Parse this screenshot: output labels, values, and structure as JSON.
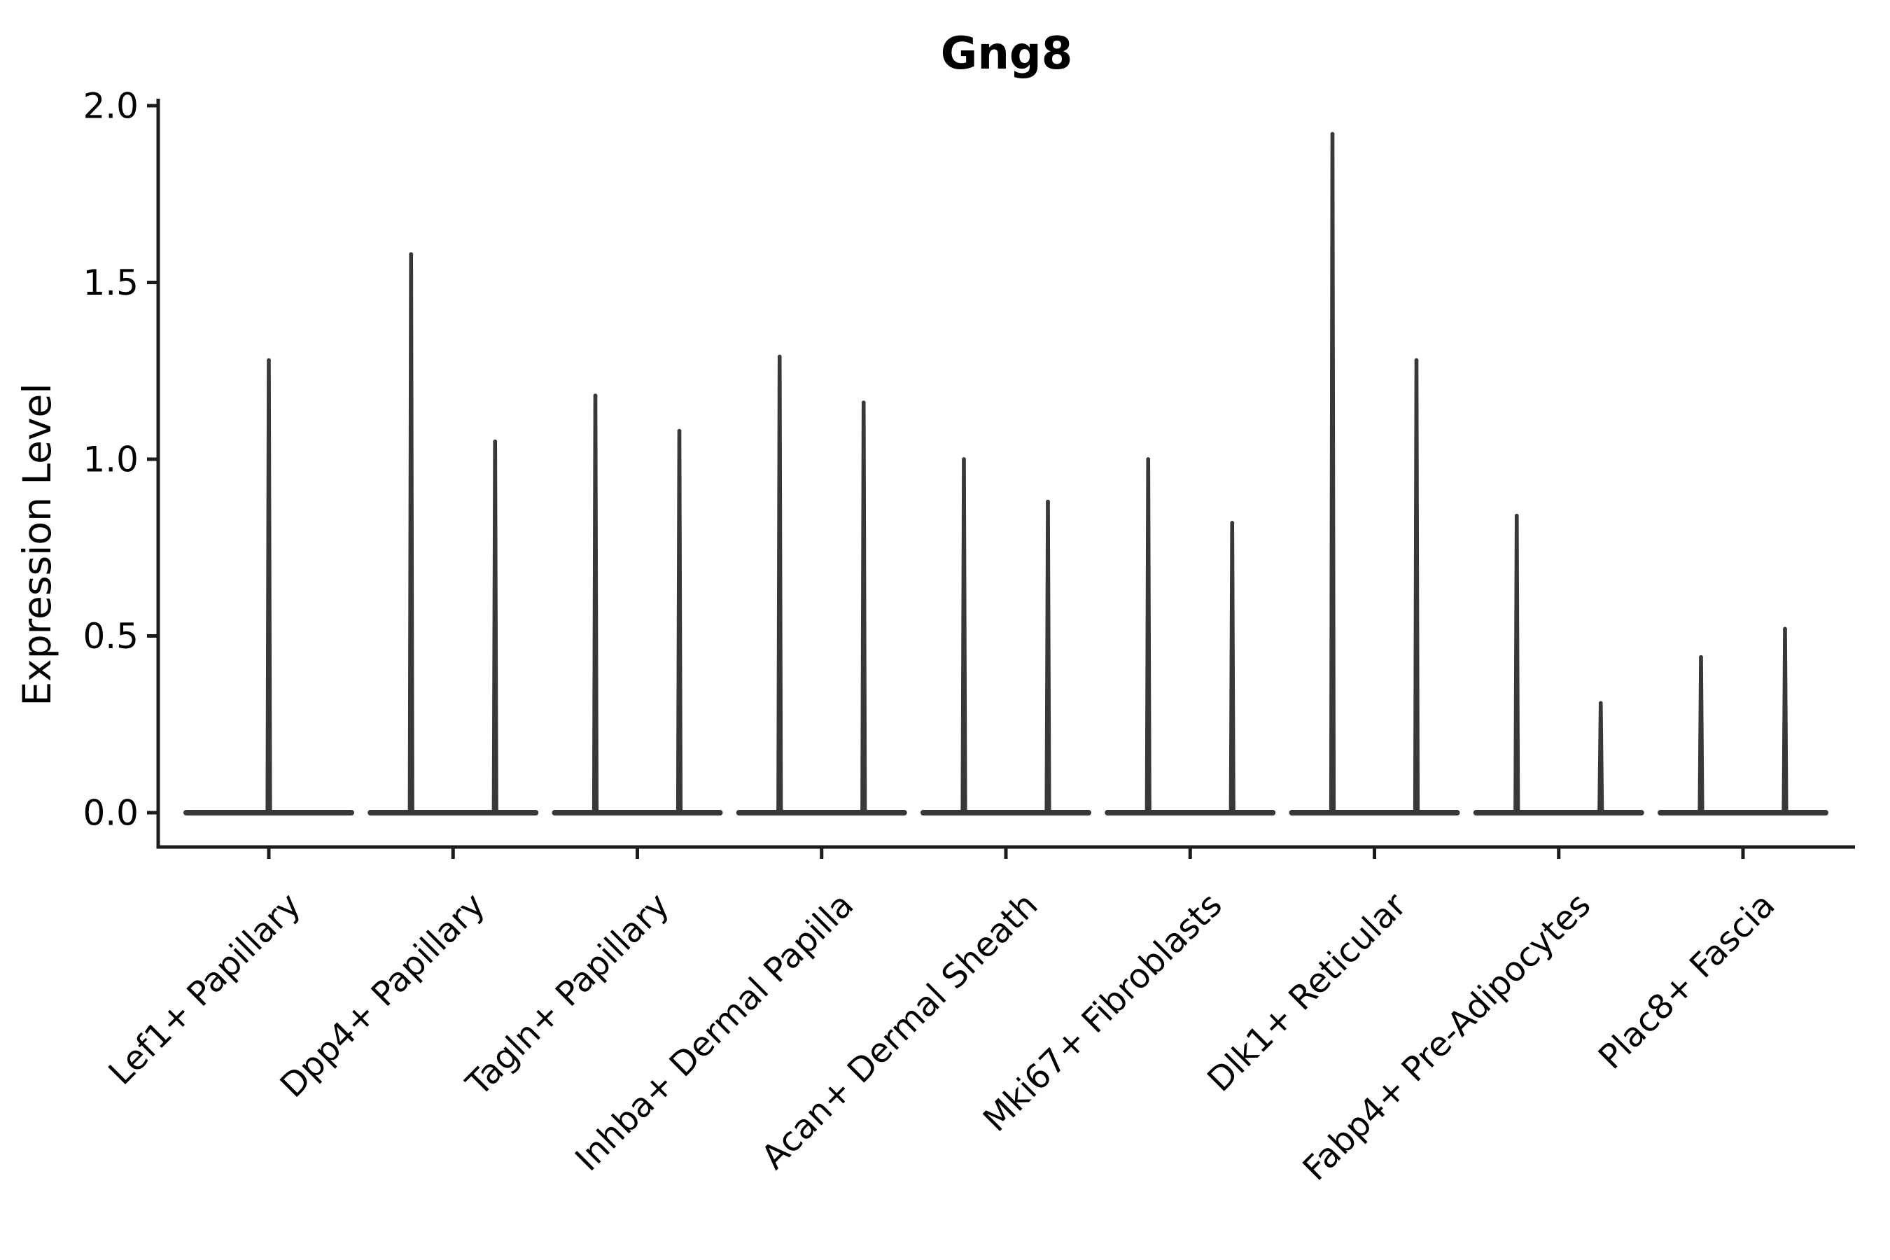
{
  "page": {
    "background": "#ffffff"
  },
  "figure": {
    "title": "Gng8",
    "ylabel": "Expression Level",
    "axis_color": "#1c1c1c",
    "violin_color": "#383838",
    "text_color": "#000000"
  },
  "chart_data": {
    "type": "violin",
    "title": "Gng8",
    "xlabel": "",
    "ylabel": "Expression Level",
    "ylim": [
      -0.1,
      2.05
    ],
    "yticks": [
      0.0,
      0.5,
      1.0,
      1.5,
      2.0
    ],
    "ytick_labels": [
      "0.0",
      "0.5",
      "1.0",
      "1.5",
      "2.0"
    ],
    "grid": false,
    "legend": "none",
    "categories": [
      "Lef1+ Papillary",
      "Dpp4+ Papillary",
      "Tagln+ Papillary",
      "Inhba+ Dermal Papilla",
      "Acan+ Dermal Sheath",
      "Mki67+ Fibroblasts",
      "Dlk1+ Reticular",
      "Fabp4+ Pre-Adipocytes",
      "Plac8+ Fascia"
    ],
    "violins": [
      {
        "category": "Lef1+ Papillary",
        "peaks": [
          1.28
        ]
      },
      {
        "category": "Dpp4+ Papillary",
        "peaks": [
          1.58,
          1.05
        ]
      },
      {
        "category": "Tagln+ Papillary",
        "peaks": [
          1.18,
          1.08
        ]
      },
      {
        "category": "Inhba+ Dermal Papilla",
        "peaks": [
          1.29,
          1.16
        ]
      },
      {
        "category": "Acan+ Dermal Sheath",
        "peaks": [
          1.0,
          0.88
        ]
      },
      {
        "category": "Mki67+ Fibroblasts",
        "peaks": [
          1.0,
          0.82
        ]
      },
      {
        "category": "Dlk1+ Reticular",
        "peaks": [
          1.92,
          1.28
        ]
      },
      {
        "category": "Fabp4+ Pre-Adipocytes",
        "peaks": [
          0.84,
          0.31
        ]
      },
      {
        "category": "Plac8+ Fascia",
        "peaks": [
          0.44,
          0.52
        ]
      }
    ]
  }
}
